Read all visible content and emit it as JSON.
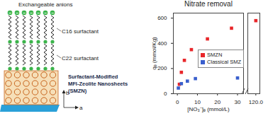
{
  "diagram": {
    "labels": {
      "anions": "Exchangeable anions",
      "c16": "C16 surfactant",
      "c22": "C22 surfactant"
    },
    "anion_sign": "−",
    "title_lines": [
      "Surfactant-Modified",
      "MFI-Zeolite Nanosheets",
      "(SMZN)"
    ],
    "axes": [
      "b",
      "a"
    ]
  },
  "chart_data": {
    "type": "scatter",
    "title": "Nitrate removal",
    "x_label": "[NO₃⁻]ₑ (mmol/L)",
    "y_label": "qₑ (mmol/Kg)",
    "series": [
      {
        "name": "SMZN",
        "color": "#e8262a",
        "marker": "square",
        "x": [
          1,
          2,
          3.5,
          7,
          15,
          27,
          120
        ],
        "values": [
          75,
          170,
          265,
          350,
          435,
          520,
          580
        ]
      },
      {
        "name": "Classical SMZ",
        "color": "#3a5fcd",
        "marker": "square",
        "x": [
          0.5,
          2,
          5,
          9,
          30
        ],
        "values": [
          45,
          80,
          100,
          120,
          125
        ]
      }
    ],
    "xlim": [
      -2,
      122
    ],
    "x_break": [
      33,
      116
    ],
    "xticks": [
      0,
      10,
      20,
      30,
      120
    ],
    "ylim": [
      0,
      640
    ],
    "yticks": [
      0,
      200,
      400,
      600
    ],
    "legend": "right",
    "grid": false
  }
}
